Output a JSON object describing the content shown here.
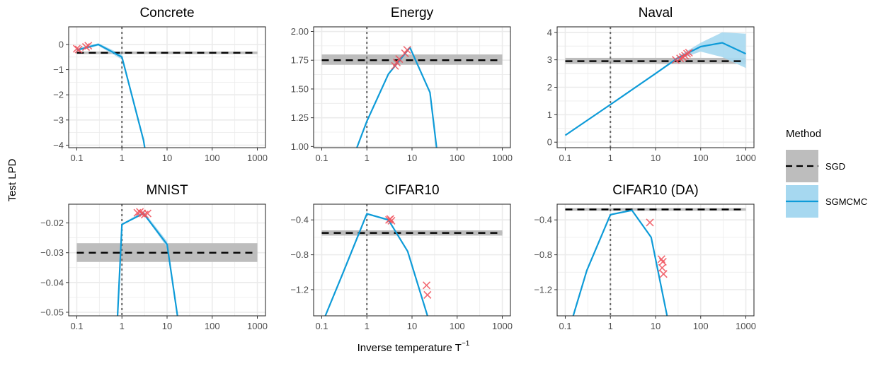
{
  "figure": {
    "ylabel": "Test LPD",
    "xlabel": "Inverse temperature T",
    "xlabel_sup": "−1",
    "colors": {
      "sgmcmc_line": "#0E9BD8",
      "sgmcmc_band": "#A6D8F0",
      "sgd_band": "#BDBDBD",
      "sgd_line": "#000000",
      "marker": "#F0505A",
      "grid": "#EBEBEB",
      "vline": "#666666"
    }
  },
  "legend": {
    "title": "Method",
    "items": [
      {
        "label": "SGD",
        "style": "dashed-line-grey-band"
      },
      {
        "label": "SGMCMC",
        "style": "solid-line-blue-band"
      }
    ]
  },
  "chart_data": [
    {
      "type": "line",
      "title": "Concrete",
      "x_scale": "log",
      "xlim": [
        0.1,
        1000
      ],
      "x_ticks": [
        0.1,
        1,
        10,
        100,
        1000
      ],
      "x_tick_labels": [
        "0.1",
        "1",
        "10",
        "100",
        "1000"
      ],
      "ylim": [
        -4.1,
        0.7
      ],
      "y_ticks": [
        0,
        -1,
        -2,
        -3,
        -4
      ],
      "y_tick_labels": [
        "0",
        "−1",
        "−2",
        "−3",
        "−4"
      ],
      "vline_x": 1,
      "sgd": {
        "value": -0.33,
        "band": [
          -0.38,
          -0.28
        ]
      },
      "sgmcmc": {
        "x": [
          0.1,
          0.3,
          1,
          3,
          3.2
        ],
        "y": [
          -0.22,
          0.0,
          -0.5,
          -3.8,
          -4.1
        ],
        "lower": [
          -0.27,
          -0.05,
          -0.6,
          -3.9,
          -4.1
        ],
        "upper": [
          -0.17,
          0.05,
          -0.4,
          -3.7,
          -4.1
        ]
      },
      "markers": {
        "x": [
          0.1,
          0.11,
          0.16,
          0.18
        ],
        "y": [
          -0.17,
          -0.2,
          -0.1,
          -0.05
        ]
      }
    },
    {
      "type": "line",
      "title": "Energy",
      "x_scale": "log",
      "xlim": [
        0.1,
        1000
      ],
      "x_ticks": [
        0.1,
        1,
        10,
        100,
        1000
      ],
      "x_tick_labels": [
        "0.1",
        "1",
        "10",
        "100",
        "1000"
      ],
      "ylim": [
        0.99,
        2.04
      ],
      "y_ticks": [
        2.0,
        1.75,
        1.5,
        1.25,
        1.0
      ],
      "y_tick_labels": [
        "2.00",
        "1.75",
        "1.50",
        "1.25",
        "1.00"
      ],
      "vline_x": 1,
      "sgd": {
        "value": 1.75,
        "band": [
          1.71,
          1.8
        ]
      },
      "sgmcmc": {
        "x": [
          0.6,
          1,
          3,
          9,
          25,
          35
        ],
        "y": [
          0.99,
          1.22,
          1.63,
          1.86,
          1.47,
          0.99
        ],
        "lower": [
          0.99,
          1.21,
          1.62,
          1.85,
          1.46,
          0.99
        ],
        "upper": [
          0.99,
          1.23,
          1.64,
          1.87,
          1.48,
          0.99
        ]
      },
      "markers": {
        "x": [
          4.2,
          4.6,
          5.2,
          7.0,
          7.8
        ],
        "y": [
          1.7,
          1.73,
          1.76,
          1.81,
          1.84
        ]
      }
    },
    {
      "type": "line",
      "title": "Naval",
      "x_scale": "log",
      "xlim": [
        0.1,
        1000
      ],
      "x_ticks": [
        0.1,
        1,
        10,
        100,
        1000
      ],
      "x_tick_labels": [
        "0.1",
        "1",
        "10",
        "100",
        "1000"
      ],
      "ylim": [
        -0.2,
        4.2
      ],
      "y_ticks": [
        4,
        3,
        2,
        1,
        0
      ],
      "y_tick_labels": [
        "4",
        "3",
        "2",
        "1",
        "0"
      ],
      "vline_x": 1,
      "sgd": {
        "value": 2.95,
        "band": [
          2.85,
          3.07
        ]
      },
      "sgmcmc": {
        "x": [
          0.1,
          1,
          10,
          30,
          100,
          300,
          1000
        ],
        "y": [
          0.25,
          1.37,
          2.5,
          3.05,
          3.48,
          3.62,
          3.22
        ],
        "lower": [
          0.24,
          1.36,
          2.49,
          3.0,
          3.3,
          3.1,
          2.7
        ],
        "upper": [
          0.26,
          1.38,
          2.51,
          3.1,
          3.62,
          4.0,
          3.95
        ]
      },
      "markers": {
        "x": [
          28,
          35,
          40,
          45,
          50,
          55
        ],
        "y": [
          3.0,
          3.05,
          3.1,
          3.15,
          3.22,
          3.26
        ]
      }
    },
    {
      "type": "line",
      "title": "MNIST",
      "x_scale": "log",
      "xlim": [
        0.1,
        1000
      ],
      "x_ticks": [
        0.1,
        1,
        10,
        100,
        1000
      ],
      "x_tick_labels": [
        "0.1",
        "1",
        "10",
        "100",
        "1000"
      ],
      "ylim": [
        -0.0512,
        -0.0137
      ],
      "y_ticks": [
        -0.02,
        -0.03,
        -0.04,
        -0.05
      ],
      "y_tick_labels": [
        "−0.02",
        "−0.03",
        "−0.04",
        "−0.05"
      ],
      "vline_x": 1,
      "sgd": {
        "value": -0.03,
        "band": [
          -0.0331,
          -0.0268
        ]
      },
      "sgmcmc": {
        "x": [
          0.8,
          1,
          3,
          10,
          17
        ],
        "y": [
          -0.0512,
          -0.0205,
          -0.0168,
          -0.0272,
          -0.0512
        ],
        "lower": [
          -0.0512,
          -0.0207,
          -0.017,
          -0.0282,
          -0.0512
        ],
        "upper": [
          -0.0512,
          -0.0203,
          -0.016,
          -0.0262,
          -0.0512
        ]
      },
      "markers": {
        "x": [
          2.2,
          2.5,
          2.8,
          3.2,
          3.7
        ],
        "y": [
          -0.0166,
          -0.0163,
          -0.0168,
          -0.0172,
          -0.0168
        ]
      }
    },
    {
      "type": "line",
      "title": "CIFAR10",
      "x_scale": "log",
      "xlim": [
        0.1,
        1000
      ],
      "x_ticks": [
        0.1,
        1,
        10,
        100,
        1000
      ],
      "x_tick_labels": [
        "0.1",
        "1",
        "10",
        "100",
        "1000"
      ],
      "ylim": [
        -1.5,
        -0.22
      ],
      "y_ticks": [
        -0.4,
        -0.8,
        -1.2
      ],
      "y_tick_labels": [
        "−0.4",
        "−0.8",
        "−1.2"
      ],
      "vline_x": 1,
      "sgd": {
        "value": -0.55,
        "band": [
          -0.58,
          -0.52
        ]
      },
      "sgmcmc": {
        "x": [
          0.12,
          0.3,
          1,
          3,
          8,
          22
        ],
        "y": [
          -1.5,
          -1.0,
          -0.33,
          -0.4,
          -0.76,
          -1.5
        ],
        "lower": [
          -1.5,
          -1.01,
          -0.34,
          -0.41,
          -0.77,
          -1.5
        ],
        "upper": [
          -1.5,
          -0.99,
          -0.32,
          -0.39,
          -0.75,
          -1.5
        ]
      },
      "markers": {
        "x": [
          3.1,
          3.3,
          3.5,
          21,
          22
        ],
        "y": [
          -0.4,
          -0.39,
          -0.41,
          -1.15,
          -1.26
        ]
      }
    },
    {
      "type": "line",
      "title": "CIFAR10 (DA)",
      "x_scale": "log",
      "xlim": [
        0.1,
        1000
      ],
      "x_ticks": [
        0.1,
        1,
        10,
        100,
        1000
      ],
      "x_tick_labels": [
        "0.1",
        "1",
        "10",
        "100",
        "1000"
      ],
      "ylim": [
        -1.5,
        -0.22
      ],
      "y_ticks": [
        -0.4,
        -0.8,
        -1.2
      ],
      "y_tick_labels": [
        "−0.4",
        "−0.8",
        "−1.2"
      ],
      "vline_x": 1,
      "sgd": {
        "value": -0.28,
        "band": [
          -0.295,
          -0.265
        ]
      },
      "sgmcmc": {
        "x": [
          0.15,
          0.3,
          1,
          3,
          8,
          18
        ],
        "y": [
          -1.5,
          -0.98,
          -0.34,
          -0.29,
          -0.6,
          -1.5
        ],
        "lower": [
          -1.5,
          -0.99,
          -0.35,
          -0.3,
          -0.61,
          -1.5
        ],
        "upper": [
          -1.5,
          -0.97,
          -0.33,
          -0.28,
          -0.59,
          -1.5
        ]
      },
      "markers": {
        "x": [
          7.5,
          13.5,
          14.5,
          14,
          15
        ],
        "y": [
          -0.43,
          -0.85,
          -0.88,
          -0.95,
          -1.02
        ]
      }
    }
  ]
}
